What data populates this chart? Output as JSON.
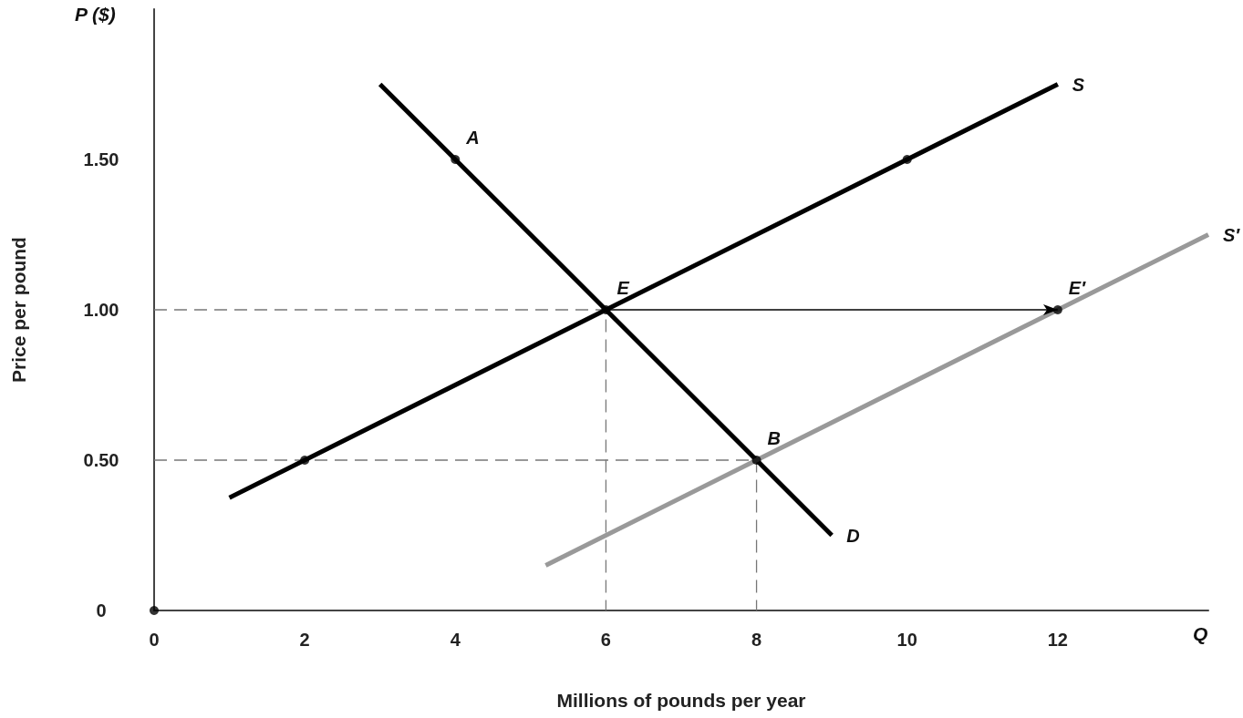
{
  "chart_data": {
    "type": "line",
    "xlabel": "Millions of pounds per year",
    "ylabel": "Price per pound",
    "annotations": [
      "P ($)",
      "Q",
      {
        "text": "A",
        "x": 4,
        "y": 1.5
      },
      {
        "text": "E",
        "x": 6,
        "y": 1
      },
      {
        "text": "B",
        "x": 8,
        "y": 0.5
      },
      {
        "text": "E′",
        "x": 12,
        "y": 1
      }
    ],
    "xlim": [
      0,
      14
    ],
    "xticks": [
      0,
      2,
      4,
      6,
      8,
      10,
      12
    ],
    "ylim": [
      0,
      2
    ],
    "yticks": [
      0,
      {
        "value": 0.5,
        "label": "0.50"
      },
      {
        "value": 1,
        "label": "1.00"
      },
      {
        "value": 1.5,
        "label": "1.50"
      }
    ],
    "grid": false,
    "legend": false,
    "marker": "none",
    "series": [
      {
        "color": "#777777",
        "line_style": "dashed",
        "x": [
          0,
          6,
          6
        ],
        "values": [
          1,
          1,
          0
        ]
      },
      {
        "color": "#777777",
        "line_style": "dashed",
        "x": [
          0,
          8,
          8
        ],
        "values": [
          0.5,
          0.5,
          0
        ]
      },
      {
        "color": "#000000",
        "line_style": "solid",
        "x": [
          6,
          12
        ],
        "values": [
          1,
          1
        ]
      },
      {
        "name": "S",
        "color": "#000000",
        "line_style": "solid",
        "x": [
          1,
          12
        ],
        "values": [
          0.375,
          1.75
        ]
      },
      {
        "name": "D",
        "color": "#000000",
        "line_style": "solid",
        "x": [
          3,
          9
        ],
        "values": [
          1.75,
          0.25
        ]
      },
      {
        "name": "S′",
        "color": "#999999",
        "line_style": "solid",
        "x": [
          5.2,
          14
        ],
        "values": [
          0.15,
          1.25
        ]
      },
      {
        "type": "scatter",
        "marker": "circle",
        "color": "#000000",
        "x": [
          0,
          2,
          4,
          6,
          8,
          10,
          12
        ],
        "values": [
          0,
          0.5,
          1.5,
          1,
          0.5,
          1.5,
          1
        ]
      }
    ]
  }
}
